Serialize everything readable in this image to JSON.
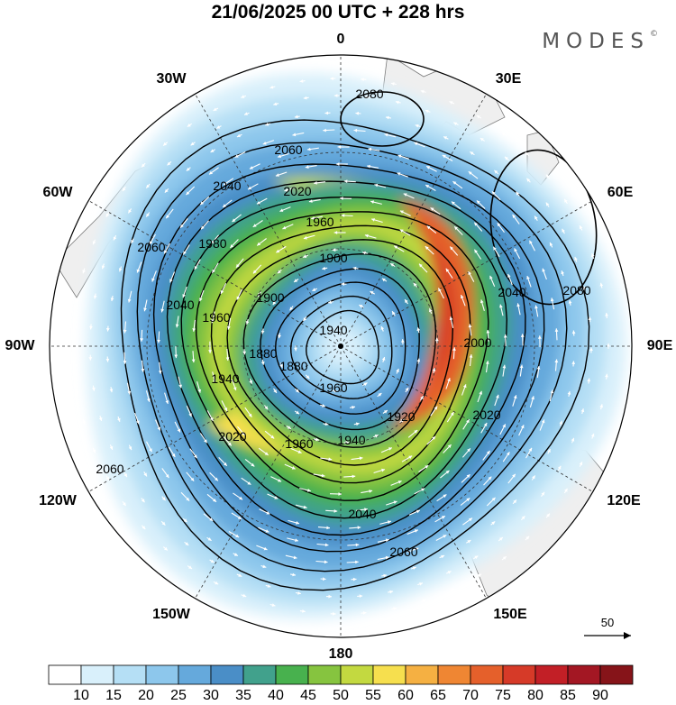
{
  "header": {
    "title": "21/06/2025  00 UTC  + 228 hrs",
    "brand": "MODES"
  },
  "map": {
    "projection": "south-polar-stereographic",
    "longitude_labels": [
      "0",
      "30E",
      "60E",
      "90E",
      "120E",
      "150E",
      "180",
      "150W",
      "120W",
      "90W",
      "60W",
      "30W"
    ],
    "contour_labels": [
      "2080",
      "2080",
      "2060",
      "2060",
      "2060",
      "2060",
      "2040",
      "2040",
      "2040",
      "2040",
      "2020",
      "2020",
      "2020",
      "2000",
      "1980",
      "1960",
      "1960",
      "1960",
      "1960",
      "1940",
      "1940",
      "1940",
      "1920",
      "1900",
      "1900",
      "1880",
      "1880"
    ],
    "colors": {
      "land": "#efefef",
      "coast": "#7a7a7a",
      "frame": "#000000"
    }
  },
  "reference_vector": {
    "value": "50"
  },
  "colorbar": {
    "units_shown": false,
    "tick_labels": [
      "10",
      "15",
      "20",
      "25",
      "30",
      "35",
      "40",
      "45",
      "50",
      "55",
      "60",
      "65",
      "70",
      "75",
      "80",
      "85",
      "90"
    ],
    "colors": [
      "#ffffff",
      "#d9f0fb",
      "#b5dff5",
      "#8dc7ec",
      "#65a9dc",
      "#4a8ec7",
      "#41a18c",
      "#48b14e",
      "#86c43f",
      "#c3d940",
      "#f6df4e",
      "#f5b042",
      "#ef8633",
      "#e5602b",
      "#d63a28",
      "#c21f26",
      "#a31723",
      "#861419"
    ]
  }
}
